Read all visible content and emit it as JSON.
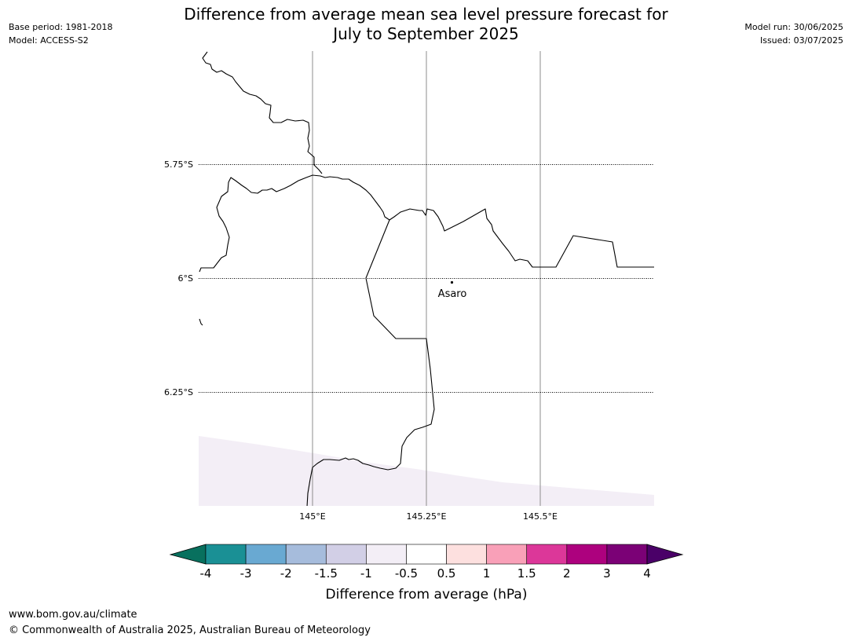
{
  "header": {
    "title_line1": "Difference from average mean sea level pressure forecast for",
    "title_line2": "July to September 2025",
    "base_period": "Base period: 1981-2018",
    "model": "Model: ACCESS-S2",
    "model_run": "Model run: 30/06/2025",
    "issued": "Issued: 03/07/2025"
  },
  "map": {
    "lat_labels": [
      "5.75°S",
      "6°S",
      "6.25°S"
    ],
    "lon_labels": [
      "145°E",
      "145.25°E",
      "145.5°E"
    ],
    "places": [
      {
        "name": "Asaro"
      }
    ]
  },
  "colorbar": {
    "label": "Difference from average (hPa)",
    "ticks": [
      "-4",
      "-3",
      "-2",
      "-1.5",
      "-1",
      "-0.5",
      "0.5",
      "1",
      "1.5",
      "2",
      "3",
      "4"
    ],
    "colors": [
      "#1a9095",
      "#69a9d2",
      "#a6bcdc",
      "#d2cfe6",
      "#f3eef6",
      "#ffffff",
      "#fde0df",
      "#f9a0b8",
      "#dc3799",
      "#ad017e",
      "#7b0176"
    ],
    "under_color": "#08705e",
    "over_color": "#4a0068"
  },
  "footer": {
    "url": "www.bom.gov.au/climate",
    "copyright": "© Commonwealth of Australia 2025, Australian Bureau of Meteorology"
  }
}
